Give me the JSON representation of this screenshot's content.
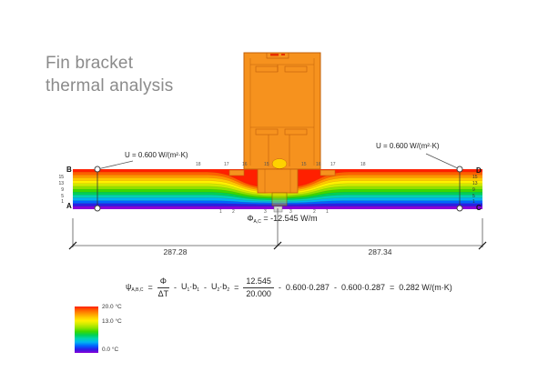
{
  "title": {
    "line1": "Fin bracket",
    "line2": "thermal analysis"
  },
  "labels": {
    "u_left": "U = 0.600 W/(m²·K)",
    "u_right": "U = 0.600 W/(m²·K)",
    "corner_b": "B",
    "corner_a": "A",
    "corner_d": "D",
    "corner_c": "C",
    "phi_symbol": "Φ",
    "phi_sub": "A,C",
    "phi_rest": "= -12.545 W/m",
    "dim_left": "287.28",
    "dim_right": "287.34"
  },
  "band": {
    "edge_ticks_left": [
      "15",
      "13",
      "9",
      "5",
      "1"
    ],
    "edge_ticks_right": [
      "15",
      "13",
      "9",
      "5",
      "1"
    ],
    "isotherm_labels_top_left": [
      "18",
      "17",
      "16",
      "15"
    ],
    "isotherm_labels_top_right": [
      "15",
      "16",
      "17",
      "18"
    ],
    "isotherm_labels_bottom": [
      "1",
      "2",
      "3",
      "3",
      "2",
      "1"
    ],
    "stripe_colors": [
      "#ff2000",
      "#ff6000",
      "#ff9600",
      "#ffc800",
      "#fff000",
      "#cdeb00",
      "#8fe300",
      "#3cd900",
      "#00d155",
      "#00d2b4",
      "#00b4f0",
      "#0064ff",
      "#2a1ee6",
      "#8a00d7"
    ]
  },
  "colors": {
    "profile": "#f6921e",
    "profile_outline": "#c2600a",
    "red_mark": "#e83000",
    "warm_spot": "#ffd200",
    "title_gray": "#8b8b8b"
  },
  "formula": {
    "psi": "ψ",
    "psi_sub": "A,B,C",
    "eq": "=",
    "minus": "-",
    "dot": "·",
    "num1": "Φ",
    "den1": "ΔT",
    "u1": "U",
    "u1_sub": "1",
    "b1": "b",
    "b1_sub": "1",
    "u2": "U",
    "u2_sub": "2",
    "b2": "b",
    "b2_sub": "2",
    "num2": "12.545",
    "den2": "20.000",
    "t1": "0.600·0.287",
    "t2": "0.600·0.287",
    "result": "0.282 W/(m·K)"
  },
  "legend": {
    "labels": [
      "20.0 °C",
      "13.0 °C",
      "0.0 °C"
    ]
  }
}
